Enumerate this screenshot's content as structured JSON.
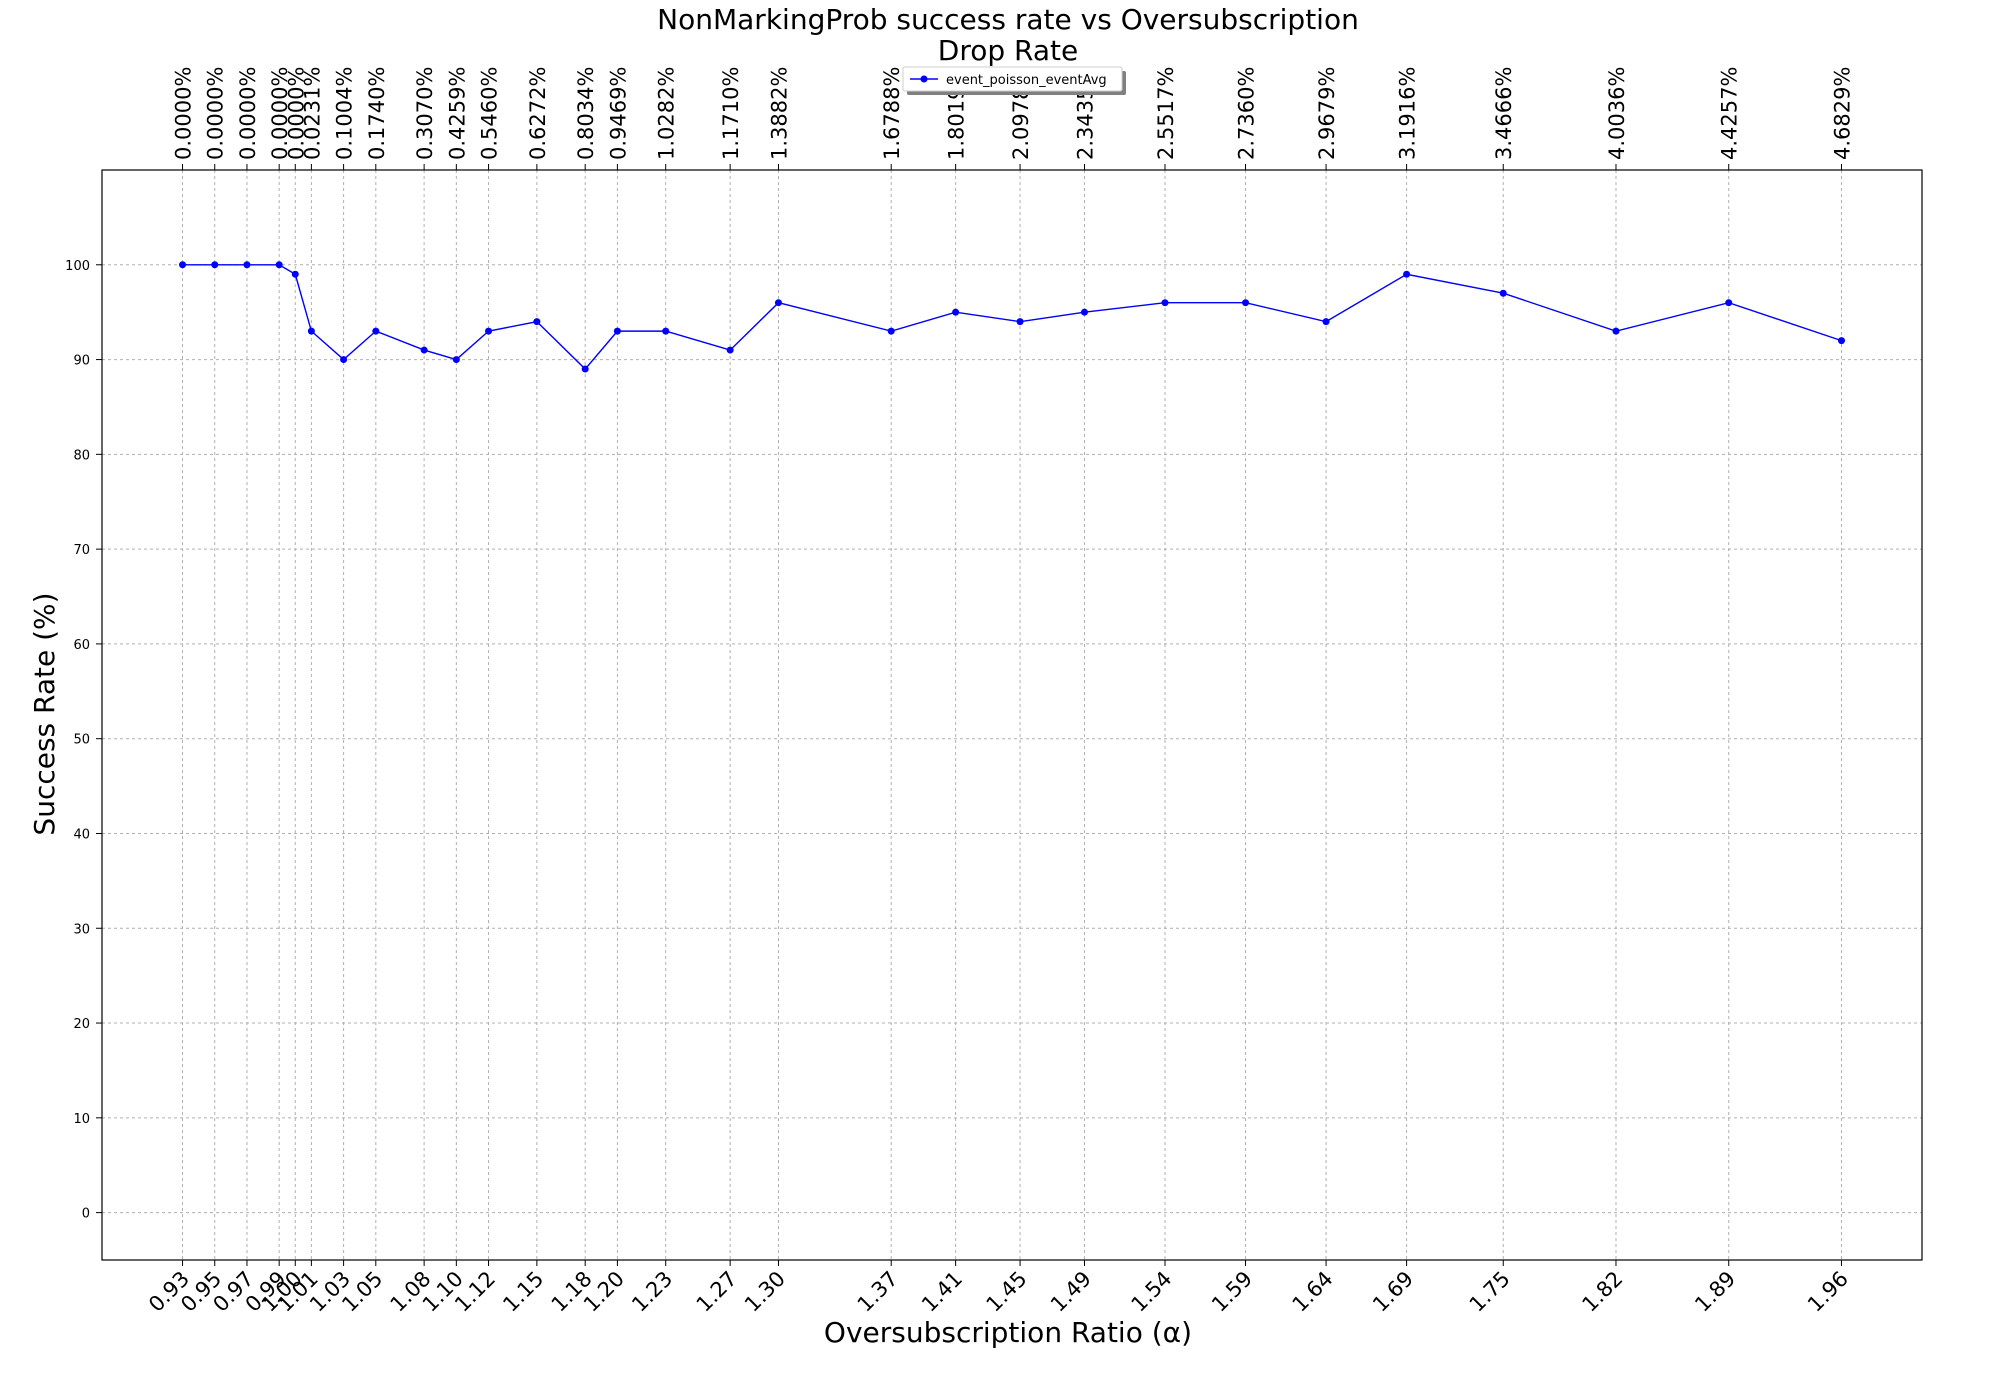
{
  "chart_data": {
    "type": "line",
    "title": "NonMarkingProb success rate vs Oversubscription",
    "top_axis_label": "Drop Rate",
    "xlabel": "Oversubscription Ratio (α)",
    "ylabel": "Success Rate (%)",
    "ylim": [
      -5,
      110
    ],
    "xlim": [
      0.88,
      2.01
    ],
    "y_ticks": [
      0,
      10,
      20,
      30,
      40,
      50,
      60,
      70,
      80,
      90,
      100
    ],
    "grid": true,
    "legend_position": "top-center",
    "x": [
      0.93,
      0.95,
      0.97,
      0.99,
      1.0,
      1.01,
      1.03,
      1.05,
      1.08,
      1.1,
      1.12,
      1.15,
      1.18,
      1.2,
      1.23,
      1.27,
      1.3,
      1.37,
      1.41,
      1.45,
      1.49,
      1.54,
      1.59,
      1.64,
      1.69,
      1.75,
      1.82,
      1.89,
      1.96
    ],
    "x_labels": [
      "0.93",
      "0.95",
      "0.97",
      "0.99",
      "1.00",
      "1.01",
      "1.03",
      "1.05",
      "1.08",
      "1.10",
      "1.12",
      "1.15",
      "1.18",
      "1.20",
      "1.23",
      "1.27",
      "1.30",
      "1.37",
      "1.41",
      "1.45",
      "1.49",
      "1.54",
      "1.59",
      "1.64",
      "1.69",
      "1.75",
      "1.82",
      "1.89",
      "1.96"
    ],
    "drop_rate_labels": [
      "0.0000%",
      "0.0000%",
      "0.0000%",
      "0.0000%",
      "0.0000%",
      "0.0231%",
      "0.1004%",
      "0.1740%",
      "0.3070%",
      "0.4259%",
      "0.5460%",
      "0.6272%",
      "0.8034%",
      "0.9469%",
      "1.0282%",
      "1.1710%",
      "1.3882%",
      "1.6788%",
      "1.8019%",
      "2.0978%",
      "2.3435%",
      "2.5517%",
      "2.7360%",
      "2.9679%",
      "3.1916%",
      "3.4666%",
      "4.0036%",
      "4.4257%",
      "4.6829%"
    ],
    "series": [
      {
        "name": "event_poisson_eventAvg",
        "color": "#0000ff",
        "values": [
          100,
          100,
          100,
          100,
          99,
          93,
          90,
          93,
          91,
          90,
          93,
          94,
          89,
          93,
          93,
          91,
          96,
          93,
          95,
          94,
          95,
          96,
          96,
          94,
          99,
          97,
          93,
          96,
          92
        ]
      }
    ]
  }
}
